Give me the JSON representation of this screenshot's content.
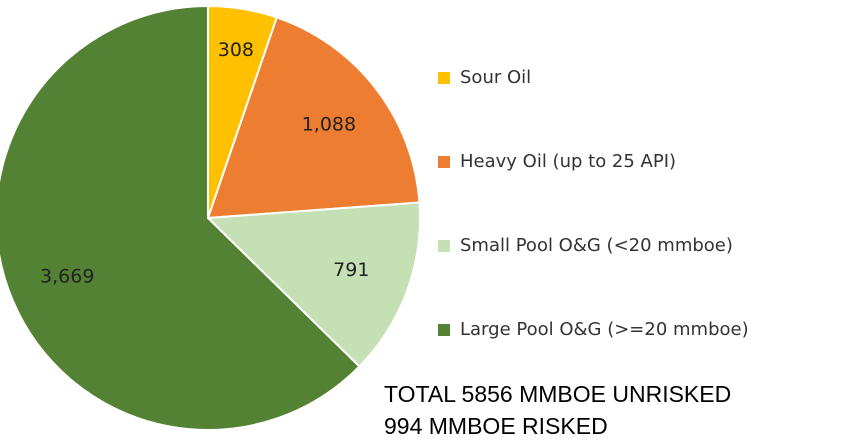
{
  "chart_data": {
    "type": "pie",
    "categories": [
      "Sour Oil",
      "Heavy Oil (up to 25 API)",
      "Small Pool O&G (<20 mmboe)",
      "Large Pool O&G (>=20 mmboe)"
    ],
    "values": [
      308,
      1088,
      791,
      3669
    ],
    "value_labels": [
      "308",
      "1,088",
      "791",
      "3,669"
    ],
    "colors": [
      "#FFC000",
      "#ED7D31",
      "#C5E0B4",
      "#548235"
    ],
    "legend": "right",
    "annotations": [
      "TOTAL 5856 MMBOE UNRISKED",
      "994 MMBOE RISKED"
    ]
  }
}
